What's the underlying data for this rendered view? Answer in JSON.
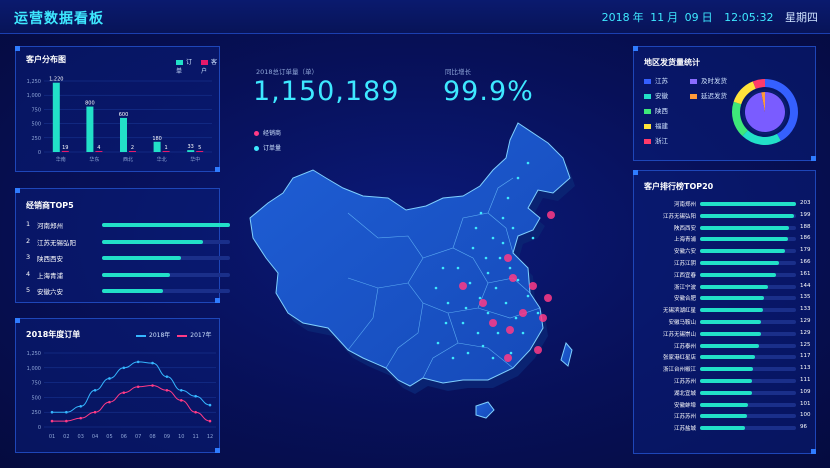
{
  "header": {
    "title": "运营数据看板",
    "year": "2018",
    "year_unit": "年",
    "month": "11",
    "month_unit": "月",
    "day": "09",
    "day_unit": "日",
    "time": "12:05:32",
    "weekday": "星期四"
  },
  "customer_distribution": {
    "title": "客户分布图",
    "legend": [
      "订单",
      "客户"
    ],
    "colors": {
      "orders": "#22e0c8",
      "customers": "#e6196a"
    },
    "chart_data": {
      "type": "bar",
      "categories": [
        "华南",
        "华东",
        "西北",
        "华北",
        "华中"
      ],
      "series": [
        {
          "name": "订单",
          "values": [
            1220,
            800,
            600,
            180,
            33
          ]
        },
        {
          "name": "客户",
          "values": [
            19,
            4,
            2,
            1,
            5
          ]
        }
      ],
      "ylim": [
        0,
        1250
      ],
      "yticks": [
        "0",
        "250",
        "500",
        "750",
        "1,000",
        "1,250"
      ],
      "value_labels": {
        "orders": [
          "1,220",
          "800",
          "600",
          "180",
          "33"
        ],
        "customers": [
          "19",
          "4",
          "2",
          "1",
          "5"
        ]
      }
    }
  },
  "dealer_top5": {
    "title": "经销商TOP5",
    "items": [
      {
        "rank": "1",
        "name": "河南郑州",
        "value": 1.0
      },
      {
        "rank": "2",
        "name": "江苏无锡弘阳",
        "value": 0.79
      },
      {
        "rank": "3",
        "name": "陕西西安",
        "value": 0.62
      },
      {
        "rank": "4",
        "name": "上海青浦",
        "value": 0.53
      },
      {
        "rank": "5",
        "name": "安徽六安",
        "value": 0.48
      }
    ]
  },
  "yearly_orders": {
    "title": "2018年度订单",
    "legend": [
      "2018年",
      "2017年"
    ],
    "colors": {
      "y2018": "#35b6ff",
      "y2017": "#ff3a86"
    },
    "chart_data": {
      "type": "line",
      "x": [
        "01",
        "02",
        "03",
        "04",
        "05",
        "06",
        "07",
        "08",
        "09",
        "10",
        "11",
        "12"
      ],
      "series": [
        {
          "name": "2018年",
          "values": [
            250,
            250,
            350,
            620,
            820,
            1000,
            1100,
            1080,
            850,
            620,
            520,
            370
          ]
        },
        {
          "name": "2017年",
          "values": [
            100,
            100,
            150,
            250,
            420,
            580,
            680,
            700,
            620,
            450,
            250,
            100
          ]
        }
      ],
      "ylim": [
        0,
        1250
      ],
      "yticks": [
        "0",
        "250",
        "500",
        "750",
        "1,000",
        "1,250"
      ]
    }
  },
  "center": {
    "total_label": "2018总订单量（单）",
    "total_value": "1,150,189",
    "growth_label": "同比增长",
    "growth_value": "99.9%",
    "map_legend": [
      "经销商",
      "订单量"
    ],
    "map_colors": {
      "dealer": "#ff3a86",
      "orders": "#3ee8ff"
    }
  },
  "region_stats": {
    "title": "地区发货量统计",
    "items": [
      {
        "name": "江苏",
        "color": "#3560ff"
      },
      {
        "name": "及时发货",
        "color": "#8a6cff"
      },
      {
        "name": "安徽",
        "color": "#22e0c8"
      },
      {
        "name": "延迟发货",
        "color": "#ff9a3a"
      },
      {
        "name": "陕西",
        "color": "#3ee87a"
      },
      {
        "name": "福建",
        "color": "#ffe23a"
      },
      {
        "name": "浙江",
        "color": "#ff3a6a"
      }
    ],
    "chart_data": {
      "type": "pie",
      "categories": [
        "江苏",
        "安徽",
        "陕西",
        "福建",
        "浙江"
      ],
      "values": [
        42,
        20,
        18,
        14,
        6
      ],
      "inner_categories": [
        "及时发货",
        "延迟发货"
      ],
      "inner_values": [
        97,
        3
      ]
    }
  },
  "customer_rank": {
    "title": "客户排行榜TOP20",
    "items": [
      {
        "name": "河南郑州",
        "value": "203"
      },
      {
        "name": "江苏无锡弘阳",
        "value": "199"
      },
      {
        "name": "陕西西安",
        "value": "188"
      },
      {
        "name": "上海青浦",
        "value": "186"
      },
      {
        "name": "安徽六安",
        "value": "179"
      },
      {
        "name": "江苏江阴",
        "value": "166"
      },
      {
        "name": "江西宜春",
        "value": "161"
      },
      {
        "name": "浙江宁波",
        "value": "144"
      },
      {
        "name": "安徽合肥",
        "value": "135"
      },
      {
        "name": "无锡滨湖红星",
        "value": "133"
      },
      {
        "name": "安徽马鞍山",
        "value": "129"
      },
      {
        "name": "江苏无锡崇山",
        "value": "129"
      },
      {
        "name": "江苏泰州",
        "value": "125"
      },
      {
        "name": "张家港红星店",
        "value": "117"
      },
      {
        "name": "浙江台州椒江",
        "value": "113"
      },
      {
        "name": "江苏苏州",
        "value": "111"
      },
      {
        "name": "湖北宜城",
        "value": "109"
      },
      {
        "name": "安徽蚌埠",
        "value": "101"
      },
      {
        "name": "江苏苏州",
        "value": "100"
      },
      {
        "name": "江苏盐城",
        "value": "96"
      }
    ]
  }
}
